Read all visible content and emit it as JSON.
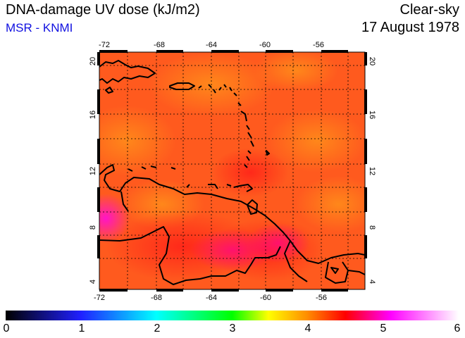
{
  "header": {
    "title": "DNA-damage UV dose (kJ/m2)",
    "subtitle": "MSR - KNMI",
    "condition": "Clear-sky",
    "date": "17 August 1978"
  },
  "map": {
    "lon_range": [
      -72,
      -53
    ],
    "lat_range": [
      3.5,
      20.5
    ],
    "lon_ticks": [
      "-72",
      "-68",
      "-64",
      "-60",
      "-56"
    ],
    "lat_ticks": [
      "4",
      "8",
      "12",
      "16",
      "20"
    ],
    "gridlines": "dotted"
  },
  "colorbar": {
    "min": 0,
    "max": 6,
    "tick_labels": [
      "0",
      "1",
      "2",
      "3",
      "4",
      "5",
      "6"
    ],
    "colors": [
      "#000000",
      "#2020ff",
      "#00ffff",
      "#00ff00",
      "#ffff00",
      "#ff8c00",
      "#ff0000",
      "#ff00ff",
      "#ffffff"
    ]
  }
}
